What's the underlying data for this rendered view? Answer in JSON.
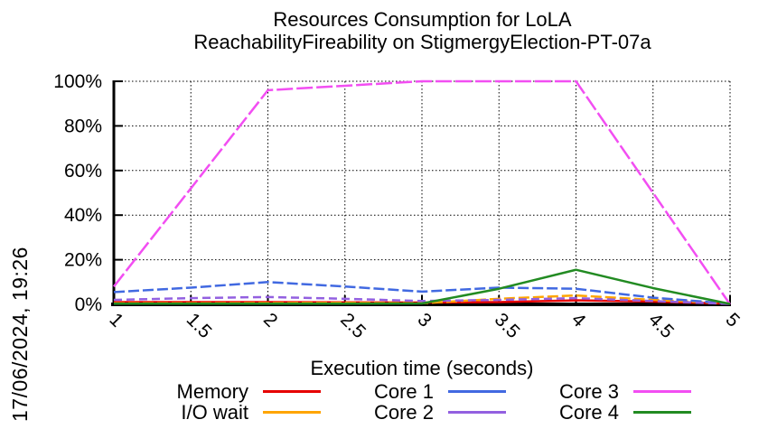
{
  "timestamp": "17/06/2024, 19:26",
  "chart_data": {
    "type": "line",
    "title": "Resources Consumption for LoLA",
    "subtitle": "ReachabilityFireability on StigmergyElection-PT-07a",
    "xlabel": "Execution time (seconds)",
    "xlim": [
      1,
      5
    ],
    "ylim": [
      0,
      100
    ],
    "grid": true,
    "legend_position": "bottom",
    "x": [
      1,
      1.5,
      2,
      2.5,
      3,
      3.5,
      4,
      4.5,
      5
    ],
    "x_tick_labels": [
      "1",
      "1.5",
      "2",
      "2.5",
      "3",
      "3.5",
      "4",
      "4.5",
      "5"
    ],
    "y_tick_values": [
      0,
      20,
      40,
      60,
      80,
      100
    ],
    "y_tick_labels": [
      "0%",
      "20%",
      "40%",
      "60%",
      "80%",
      "100%"
    ],
    "series": [
      {
        "name": "Memory",
        "color": "#e60000",
        "dash": "",
        "values": [
          1,
          1,
          1,
          0.9,
          0.8,
          1,
          1.8,
          1.2,
          0.3
        ]
      },
      {
        "name": "I/O wait",
        "color": "#ffa500",
        "dash": "12 4",
        "values": [
          0.5,
          0.5,
          0.6,
          0.7,
          0.5,
          2.5,
          4,
          2,
          0.4
        ]
      },
      {
        "name": "Core 1",
        "color": "#4169e1",
        "dash": "12 4",
        "values": [
          5.5,
          7.5,
          10,
          8,
          5.7,
          7.5,
          7,
          3,
          0.3
        ]
      },
      {
        "name": "Core 2",
        "color": "#9360e0",
        "dash": "9 5",
        "values": [
          2,
          2.8,
          3.3,
          2.5,
          1.5,
          2,
          2.8,
          1.5,
          0.2
        ]
      },
      {
        "name": "Core 3",
        "color": "#f24ef2",
        "dash": "18 4",
        "values": [
          8,
          52,
          96,
          98,
          100,
          100,
          100,
          50,
          0
        ]
      },
      {
        "name": "Core 4",
        "color": "#228b22",
        "dash": "",
        "values": [
          0.3,
          0.3,
          0.3,
          0.3,
          0.4,
          7,
          15.5,
          7.3,
          0.2
        ]
      }
    ],
    "legend_order": [
      0,
      2,
      4,
      1,
      3,
      5
    ]
  }
}
